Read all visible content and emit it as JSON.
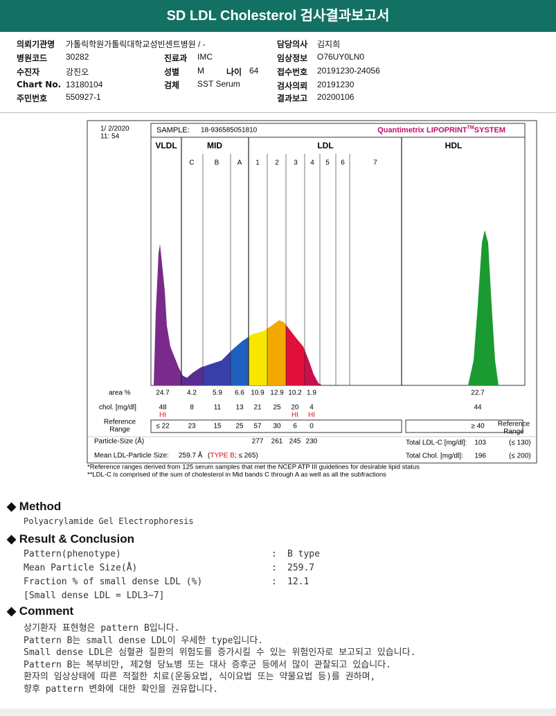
{
  "header": {
    "title": "SD LDL Cholesterol 검사결과보고서"
  },
  "info": {
    "institution": {
      "label": "의뢰기관명",
      "value": "가톨릭학원가톨릭대학교성빈센트병원 / -"
    },
    "doctor": {
      "label": "담당의사",
      "value": "김지희"
    },
    "hospital_code": {
      "label": "병원코드",
      "value": "30282"
    },
    "department": {
      "label": "진료과",
      "value": "IMC"
    },
    "clinical_info": {
      "label": "임상정보",
      "value": "O76UY0LN0"
    },
    "patient": {
      "label": "수진자",
      "value": "강진오"
    },
    "sex": {
      "label": "성별",
      "value": "M"
    },
    "age": {
      "label": "나이",
      "value": "64"
    },
    "receipt_no": {
      "label": "접수번호",
      "value": "20191230-24056"
    },
    "chart_no": {
      "label": "Chart No.",
      "value": "13180104"
    },
    "specimen": {
      "label": "검체",
      "value": "SST Serum"
    },
    "request_date": {
      "label": "검사의뢰",
      "value": "20191230"
    },
    "resident_no": {
      "label": "주민번호",
      "value": "550927-1"
    },
    "report_date": {
      "label": "결과보고",
      "value": "20200106"
    }
  },
  "figure": {
    "date": "1/ 2/2020",
    "time": "11: 54",
    "sample_label": "SAMPLE:",
    "sample_id": "18-936585051810",
    "brand": "Quantimetrix LIPOPRINT",
    "brand_tm": "TM",
    "brand_system": "SYSTEM",
    "groups": [
      "VLDL",
      "MID",
      "LDL",
      "HDL"
    ],
    "bands": [
      "C",
      "B",
      "A",
      "1",
      "2",
      "3",
      "4",
      "5",
      "6",
      "7"
    ],
    "area": {
      "label": "area %",
      "values": [
        24.7,
        4.2,
        5.9,
        6.6,
        10.9,
        12.9,
        10.2,
        1.9
      ],
      "hdl": 22.7
    },
    "chol": {
      "label": "chol. [mg/dl]",
      "values": [
        48,
        8,
        11,
        13,
        21,
        25,
        20,
        4
      ],
      "hdl": 44,
      "flags": [
        "HI",
        null,
        null,
        null,
        null,
        null,
        "HI",
        "HI"
      ]
    },
    "reference": {
      "label_lines": [
        "Reference",
        "Range"
      ],
      "values": [
        {
          "value": 22,
          "label": "≤ 22"
        },
        23,
        15,
        25,
        57,
        30,
        6,
        0
      ],
      "hdl": {
        "value": 40,
        "label": "≥ 40"
      },
      "side_label_lines": [
        "Reference",
        "Range"
      ]
    },
    "particle_size": {
      "label": "Particle-Size (Å)",
      "values": [
        277,
        261,
        245,
        230
      ]
    },
    "mean_ldl": {
      "label": "Mean LDL-Particle Size:",
      "value": "259.7 Å",
      "open": "(",
      "type": "TYPE B",
      "rest": "; ≤ 265)"
    },
    "total_ldl": {
      "label": "Total LDL-C [mg/dl]:",
      "value": 103,
      "range": "(≤ 130)"
    },
    "total_chol": {
      "label": "Total Chol. [mg/dl]:",
      "value": 196,
      "range": "(≤ 200)"
    },
    "footnotes": [
      "*Reference ranges derived from 125 serum samples that met the NCEP ATP III guidelines for desirable lipid status",
      "**LDL-C is comprised of the sum of cholesterol in Mid bands C through A as well as all the subfractions"
    ]
  },
  "method": {
    "heading": "Method",
    "text": "Polyacrylamide Gel Electrophoresis"
  },
  "result": {
    "heading": "Result & Conclusion",
    "separator": ":",
    "rows": [
      {
        "label": "Pattern(phenotype)",
        "value": "B type"
      },
      {
        "label": "Mean Particle Size(Å)",
        "value": "259.7"
      },
      {
        "label": "Fraction % of small dense LDL (%)",
        "value": "12.1"
      }
    ],
    "note": "[Small dense LDL = LDL3~7]"
  },
  "comment": {
    "heading": "Comment",
    "lines": [
      "상기환자 표현형은 pattern B입니다.",
      "Pattern B는 small dense LDL이 우세한 type입니다.",
      "Small dense LDL은 심혈관 질환의 위험도를 증가시킬 수 있는 위험인자로 보고되고 있습니다.",
      "Pattern B는 복부비만, 제2형 당뇨병 또는 대사 증후군 등에서 많이 관찰되고 있습니다.",
      "환자의 임상상태에 따른 적절한 치료(운동요법, 식이요법 또는 약물요법 등)를 권하며,",
      "향후 pattern 변화에 대한 확인을 권유합니다."
    ]
  }
}
